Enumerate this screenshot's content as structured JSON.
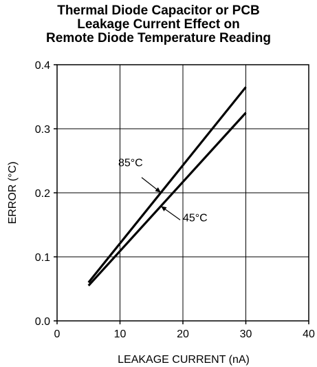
{
  "chart_data": {
    "type": "line",
    "title": [
      "Thermal Diode Capacitor or PCB",
      "Leakage Current Effect on",
      "Remote Diode Temperature Reading"
    ],
    "xlabel": "LEAKAGE CURRENT (nA)",
    "ylabel": "ERROR (°C)",
    "xlim": [
      0,
      40
    ],
    "ylim": [
      0.0,
      0.4
    ],
    "xticks": [
      "0",
      "10",
      "20",
      "30",
      "40"
    ],
    "yticks": [
      "0.0",
      "0.1",
      "0.2",
      "0.3",
      "0.4"
    ],
    "grid": true,
    "series": [
      {
        "name": "85°C",
        "x": [
          5,
          30
        ],
        "y": [
          0.06,
          0.365
        ]
      },
      {
        "name": "45°C",
        "x": [
          5,
          30
        ],
        "y": [
          0.055,
          0.325
        ]
      }
    ],
    "annotations": [
      {
        "text": "85°C",
        "series": 0,
        "at_x": 16.5
      },
      {
        "text": "45°C",
        "series": 1,
        "at_x": 16.5
      }
    ],
    "line_color": "#000000",
    "grid_color": "#000000"
  }
}
